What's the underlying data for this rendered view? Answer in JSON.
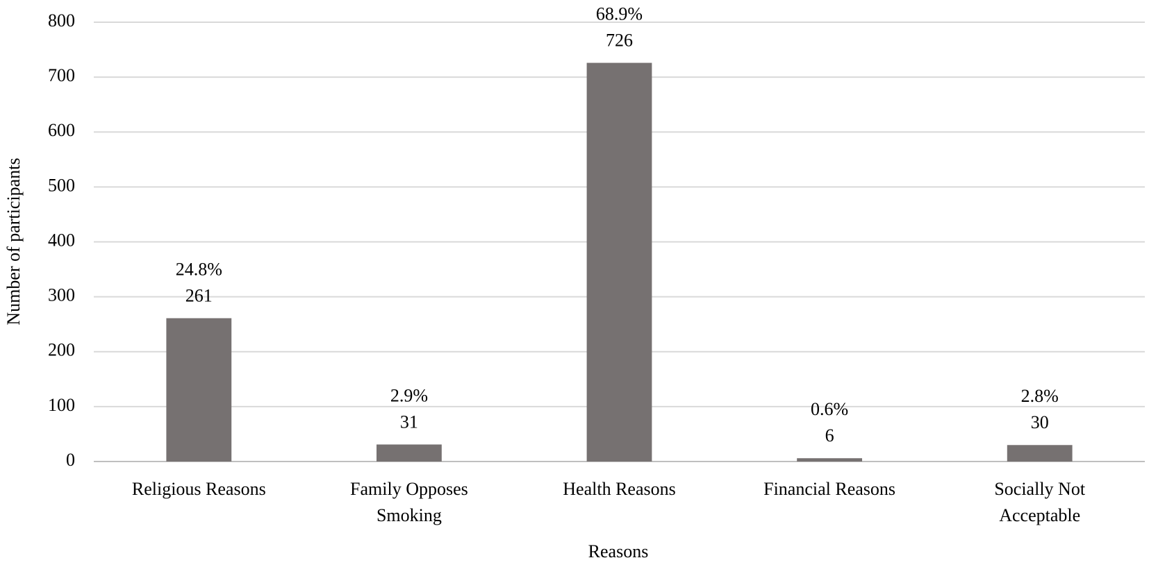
{
  "chart_data": {
    "type": "bar",
    "x_label": "Reasons",
    "y_label": "Number of participants",
    "categories": [
      "Religious Reasons",
      "Family Opposes Smoking",
      "Health Reasons",
      "Financial Reasons",
      "Socially Not Acceptable"
    ],
    "values": [
      261,
      31,
      726,
      6,
      30
    ],
    "percent_labels": [
      "24.8%",
      "2.9%",
      "68.9%",
      "0.6%",
      "2.8%"
    ],
    "color": "#767171",
    "ylim": [
      0,
      800
    ],
    "yticks": [
      0,
      100,
      200,
      300,
      400,
      500,
      600,
      700,
      800
    ],
    "grid": true
  }
}
